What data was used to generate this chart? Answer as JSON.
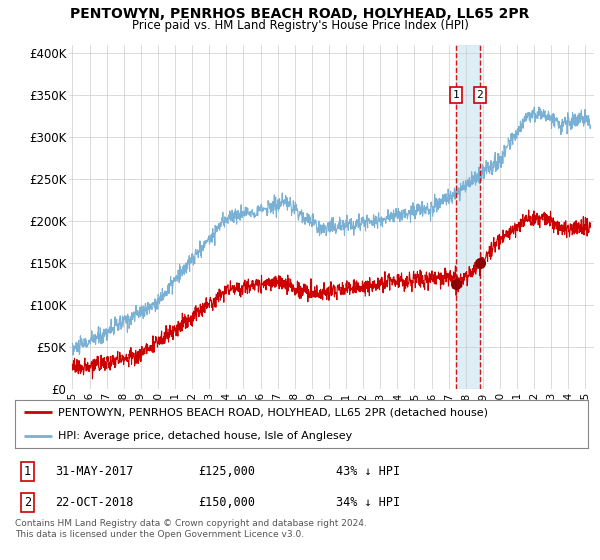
{
  "title": "PENTOWYN, PENRHOS BEACH ROAD, HOLYHEAD, LL65 2PR",
  "subtitle": "Price paid vs. HM Land Registry's House Price Index (HPI)",
  "ylabel_ticks": [
    "£0",
    "£50K",
    "£100K",
    "£150K",
    "£200K",
    "£250K",
    "£300K",
    "£350K",
    "£400K"
  ],
  "ytick_vals": [
    0,
    50000,
    100000,
    150000,
    200000,
    250000,
    300000,
    350000,
    400000
  ],
  "ylim": [
    0,
    410000
  ],
  "xlim_start": 1994.8,
  "xlim_end": 2025.5,
  "xticks": [
    1995,
    1996,
    1997,
    1998,
    1999,
    2000,
    2001,
    2002,
    2003,
    2004,
    2005,
    2006,
    2007,
    2008,
    2009,
    2010,
    2011,
    2012,
    2013,
    2014,
    2015,
    2016,
    2017,
    2018,
    2019,
    2020,
    2021,
    2022,
    2023,
    2024,
    2025
  ],
  "hpi_color": "#7ab0d4",
  "price_color": "#cc0000",
  "vline_color": "#cc0000",
  "shade_color": "#d0e8f5",
  "sale1_x": 2017.42,
  "sale1_y": 125000,
  "sale2_x": 2018.83,
  "sale2_y": 150000,
  "sale1_label": "1",
  "sale2_label": "2",
  "legend_line1": "PENTOWYN, PENRHOS BEACH ROAD, HOLYHEAD, LL65 2PR (detached house)",
  "legend_line2": "HPI: Average price, detached house, Isle of Anglesey",
  "footer": "Contains HM Land Registry data © Crown copyright and database right 2024.\nThis data is licensed under the Open Government Licence v3.0.",
  "background_color": "#ffffff",
  "grid_color": "#cccccc"
}
